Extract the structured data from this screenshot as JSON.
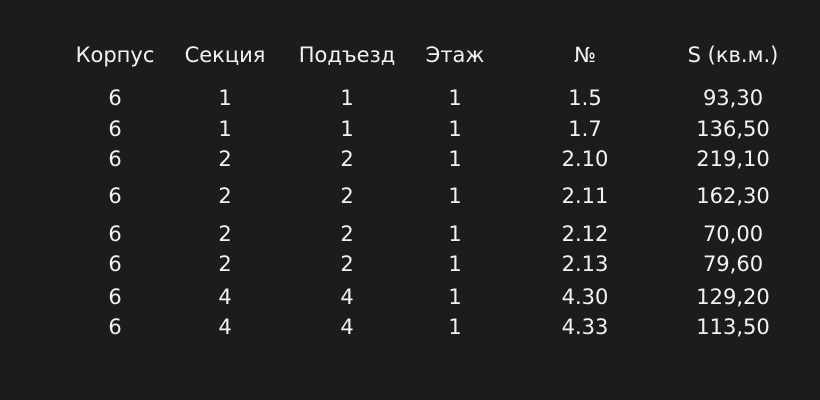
{
  "table": {
    "headers": [
      "Корпус",
      "Секция",
      "Подъезд",
      "Этаж",
      "№",
      "S (кв.м.)"
    ],
    "rows": [
      [
        "6",
        "1",
        "1",
        "1",
        "1.5",
        "93,30"
      ],
      [
        "6",
        "1",
        "1",
        "1",
        "1.7",
        "136,50"
      ],
      [
        "6",
        "2",
        "2",
        "1",
        "2.10",
        "219,10"
      ],
      [
        "6",
        "2",
        "2",
        "1",
        "2.11",
        "162,30"
      ],
      [
        "6",
        "2",
        "2",
        "1",
        "2.12",
        "70,00"
      ],
      [
        "6",
        "2",
        "2",
        "1",
        "2.13",
        "79,60"
      ],
      [
        "6",
        "4",
        "4",
        "1",
        "4.30",
        "129,20"
      ],
      [
        "6",
        "4",
        "4",
        "1",
        "4.33",
        "113,50"
      ]
    ]
  },
  "colors": {
    "background": "#1c1c1c",
    "text": "#f2f2f2"
  }
}
